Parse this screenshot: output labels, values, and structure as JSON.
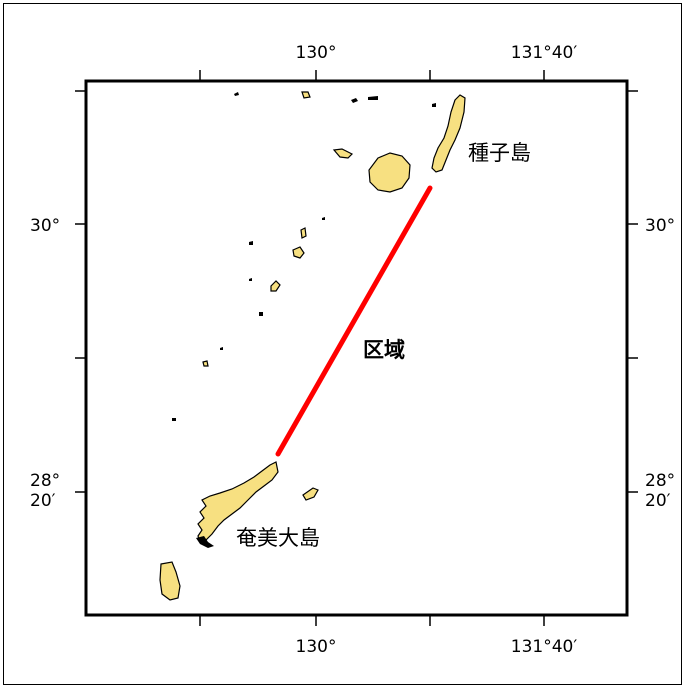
{
  "map": {
    "lon_ticks": {
      "top": [
        "130°",
        "131°40′"
      ],
      "bottom": [
        "130°",
        "131°40′"
      ]
    },
    "lat_ticks": {
      "left_30": "30°",
      "right_30": "30°",
      "left_2820_deg": "28°",
      "left_2820_min": "20′",
      "right_2820_deg": "28°",
      "right_2820_min": "20′"
    },
    "labels": {
      "tanegashima": "種子島",
      "amami": "奄美大島",
      "zone": "区域"
    },
    "colors": {
      "land": "#f7e081",
      "zone_line": "#ff0000",
      "frame": "#000000"
    },
    "zone_line": {
      "from": "Tanegashima",
      "to": "Amami Ōshima"
    }
  }
}
